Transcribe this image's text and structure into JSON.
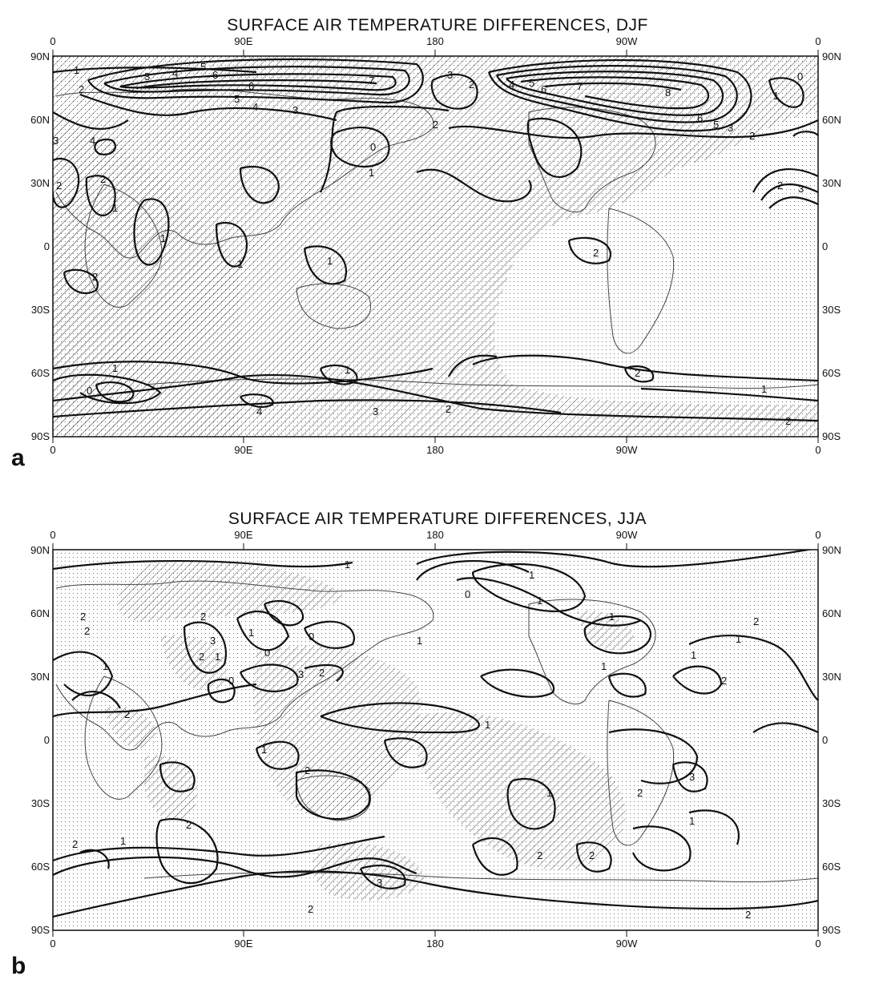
{
  "panels": [
    {
      "letter": "a",
      "title": "SURFACE AIR TEMPERATURE DIFFERENCES, DJF",
      "x_ticks": [
        "0",
        "90E",
        "180",
        "90W",
        "0"
      ],
      "y_ticks": [
        "90N",
        "60N",
        "30N",
        "0",
        "30S",
        "60S",
        "90S"
      ],
      "contour_labels": [
        "1",
        "2",
        "3",
        "4",
        "5",
        "6",
        "7",
        "6",
        "5",
        "4",
        "3",
        "2",
        "3",
        "0",
        "1",
        "2",
        "4",
        "5",
        "6",
        "7",
        "8",
        "6",
        "5",
        "3",
        "2",
        "0",
        "1",
        "2",
        "3",
        "2",
        "3",
        "4",
        "2",
        "1",
        "1",
        "1",
        "2",
        "1",
        "0",
        "1",
        "1",
        "2",
        "4",
        "3",
        "2",
        "2",
        "1",
        "2"
      ]
    },
    {
      "letter": "b",
      "title": "SURFACE AIR TEMPERATURE DIFFERENCES, JJA",
      "x_ticks": [
        "0",
        "90E",
        "180",
        "90W",
        "0"
      ],
      "y_ticks": [
        "90N",
        "60N",
        "30N",
        "0",
        "30S",
        "60S",
        "90S"
      ],
      "contour_labels": [
        "1",
        "2",
        "2",
        "3",
        "2",
        "0",
        "1",
        "0",
        "1",
        "1",
        "1",
        "0",
        "1",
        "3",
        "2",
        "1",
        "2",
        "2",
        "1",
        "0",
        "1",
        "1",
        "2",
        "2",
        "1",
        "1",
        "1",
        "2",
        "3",
        "1",
        "2",
        "2",
        "1",
        "2",
        "2",
        "2",
        "1",
        "3",
        "2",
        "2"
      ]
    }
  ]
}
